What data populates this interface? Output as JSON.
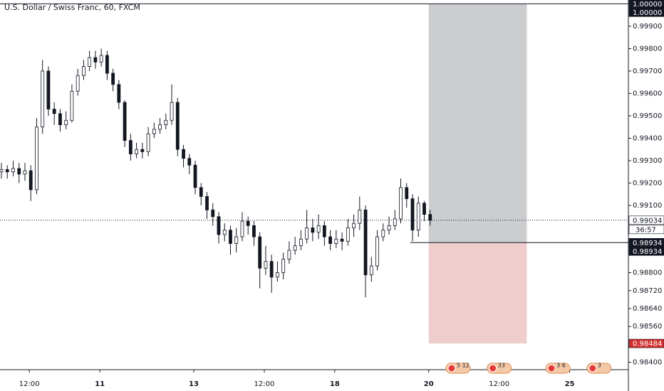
{
  "chart_data": {
    "type": "candlestick",
    "title": "U.S. Dollar / Swiss Franc, 60, FXCM",
    "xlim": [
      0,
      107
    ],
    "ylim": [
      0.98367,
      1.00017
    ],
    "xticks": [
      {
        "value": 5,
        "label": "12:00"
      },
      {
        "value": 17,
        "label": "11"
      },
      {
        "value": 33,
        "label": "13"
      },
      {
        "value": 45,
        "label": "12:00"
      },
      {
        "value": 57,
        "label": "18"
      },
      {
        "value": 73,
        "label": "20"
      },
      {
        "value": 85,
        "label": "12:00"
      },
      {
        "value": 97,
        "label": "25"
      }
    ],
    "yticks": [
      {
        "value": 0.999,
        "label": "0.99900"
      },
      {
        "value": 0.998,
        "label": "0.99800"
      },
      {
        "value": 0.997,
        "label": "0.99700"
      },
      {
        "value": 0.996,
        "label": "0.99600"
      },
      {
        "value": 0.995,
        "label": "0.99500"
      },
      {
        "value": 0.994,
        "label": "0.99400"
      },
      {
        "value": 0.993,
        "label": "0.99300"
      },
      {
        "value": 0.992,
        "label": "0.99200"
      },
      {
        "value": 0.991,
        "label": "0.99100"
      },
      {
        "value": 0.988,
        "label": "0.98800"
      },
      {
        "value": 0.9872,
        "label": "0.98720"
      },
      {
        "value": 0.9864,
        "label": "0.98640"
      },
      {
        "value": 0.9856,
        "label": "0.98560"
      },
      {
        "value": 0.984,
        "label": "0.98400"
      }
    ],
    "open": [
      0.9925,
      0.9926,
      0.9925,
      0.99265,
      0.9924,
      0.99255,
      0.9917,
      0.9945,
      0.997,
      0.9953,
      0.9951,
      0.9946,
      0.9948,
      0.9961,
      0.9968,
      0.9972,
      0.9976,
      0.9974,
      0.9977,
      0.9969,
      0.9964,
      0.9956,
      0.9939,
      0.9933,
      0.9935,
      0.9934,
      0.9942,
      0.9944,
      0.9946,
      0.9948,
      0.9956,
      0.9935,
      0.9931,
      0.9928,
      0.9918,
      0.9914,
      0.9908,
      0.9905,
      0.9897,
      0.9899,
      0.9893,
      0.9896,
      0.9903,
      0.9901,
      0.9896,
      0.9882,
      0.9885,
      0.9878,
      0.988,
      0.9886,
      0.989,
      0.9892,
      0.9895,
      0.99,
      0.9898,
      0.9901,
      0.9896,
      0.9893,
      0.9895,
      0.9894,
      0.99,
      0.9902,
      0.9908,
      0.9879,
      0.9883,
      0.9896,
      0.9899,
      0.9901,
      0.9904,
      0.9918,
      0.9913,
      0.9899,
      0.9911,
      0.9906
    ],
    "high": [
      0.9929,
      0.9928,
      0.993,
      0.9929,
      0.9929,
      0.9928,
      0.9949,
      0.9975,
      0.9972,
      0.9956,
      0.9953,
      0.9952,
      0.9964,
      0.9971,
      0.9975,
      0.9979,
      0.9979,
      0.998,
      0.9979,
      0.9971,
      0.9966,
      0.9957,
      0.9942,
      0.9938,
      0.9938,
      0.9945,
      0.9947,
      0.9949,
      0.9951,
      0.9964,
      0.9958,
      0.9937,
      0.9933,
      0.993,
      0.992,
      0.9916,
      0.9911,
      0.9907,
      0.9902,
      0.9901,
      0.99,
      0.9907,
      0.9905,
      0.9903,
      0.9898,
      0.9892,
      0.9888,
      0.9885,
      0.9889,
      0.9894,
      0.9896,
      0.9899,
      0.9908,
      0.9904,
      0.9906,
      0.9903,
      0.9899,
      0.9899,
      0.9898,
      0.9904,
      0.9906,
      0.9914,
      0.991,
      0.9887,
      0.9899,
      0.9902,
      0.9905,
      0.9908,
      0.9922,
      0.992,
      0.9915,
      0.9914,
      0.9912,
      0.9908
    ],
    "low": [
      0.9922,
      0.9922,
      0.9923,
      0.992,
      0.9921,
      0.9912,
      0.9915,
      0.9942,
      0.995,
      0.9946,
      0.9943,
      0.9944,
      0.9947,
      0.9959,
      0.9966,
      0.997,
      0.9971,
      0.9972,
      0.9966,
      0.9961,
      0.9953,
      0.9936,
      0.993,
      0.9931,
      0.9931,
      0.9932,
      0.994,
      0.9942,
      0.9944,
      0.9946,
      0.9932,
      0.9927,
      0.9924,
      0.9915,
      0.991,
      0.9904,
      0.9901,
      0.9893,
      0.9894,
      0.9888,
      0.9889,
      0.9894,
      0.9897,
      0.9892,
      0.9873,
      0.9879,
      0.9871,
      0.9876,
      0.9877,
      0.9884,
      0.9888,
      0.989,
      0.9893,
      0.9894,
      0.9895,
      0.9892,
      0.989,
      0.9891,
      0.989,
      0.9892,
      0.9896,
      0.9899,
      0.9869,
      0.9876,
      0.9881,
      0.9894,
      0.9897,
      0.9899,
      0.9902,
      0.9909,
      0.9894,
      0.9896,
      0.9903,
      0.9901
    ],
    "close": [
      0.9926,
      0.9925,
      0.99265,
      0.9924,
      0.99255,
      0.9917,
      0.9945,
      0.997,
      0.9953,
      0.9951,
      0.9946,
      0.9948,
      0.9961,
      0.9968,
      0.9972,
      0.9976,
      0.9974,
      0.9977,
      0.9969,
      0.9964,
      0.9956,
      0.9939,
      0.9933,
      0.9935,
      0.9934,
      0.9942,
      0.9944,
      0.9946,
      0.9948,
      0.9956,
      0.9935,
      0.9931,
      0.9928,
      0.9918,
      0.9914,
      0.9908,
      0.9905,
      0.9897,
      0.9899,
      0.9893,
      0.9896,
      0.9903,
      0.9901,
      0.9896,
      0.9882,
      0.9885,
      0.9878,
      0.988,
      0.9886,
      0.989,
      0.9892,
      0.9895,
      0.99,
      0.9898,
      0.9901,
      0.9896,
      0.9893,
      0.9895,
      0.9894,
      0.99,
      0.9902,
      0.9908,
      0.9879,
      0.9883,
      0.9896,
      0.9899,
      0.9901,
      0.9904,
      0.9918,
      0.9913,
      0.9899,
      0.9911,
      0.9906,
      0.99034
    ],
    "up_color": "#ffffff",
    "down_color": "#131722",
    "position": {
      "start": 73,
      "end": 89.7,
      "target": 1.0,
      "entry": 0.98934,
      "stop": 0.98484,
      "target_color": "#cccdcf",
      "stop_color": "#f0cdcd"
    },
    "current_price": 0.99034,
    "price_labels": [
      {
        "value": 1.0,
        "label": "1.00000",
        "bg": "#131722",
        "fg": "#ffffff"
      },
      {
        "value": 1.0,
        "label": "1.00000",
        "bg": "#131722",
        "fg": "#ffffff"
      },
      {
        "value": 0.99034,
        "label": "0.99034",
        "bg": "#ffffff",
        "fg": "#131722"
      },
      {
        "value": 0.98934,
        "label": "0.98934",
        "bg": "#131722",
        "fg": "#ffffff"
      },
      {
        "value": 0.98934,
        "label": "0.98934",
        "bg": "#131722",
        "fg": "#ffffff"
      },
      {
        "value": 0.98484,
        "label": "0.98484",
        "bg": "#d32f2f",
        "fg": "#ffffff"
      }
    ],
    "countdown": "36:57",
    "events": [
      {
        "x": 78,
        "label": "5 12"
      },
      {
        "x": 85,
        "label": "33"
      },
      {
        "x": 95,
        "label": "3 6"
      },
      {
        "x": 102,
        "label": "3"
      }
    ]
  }
}
